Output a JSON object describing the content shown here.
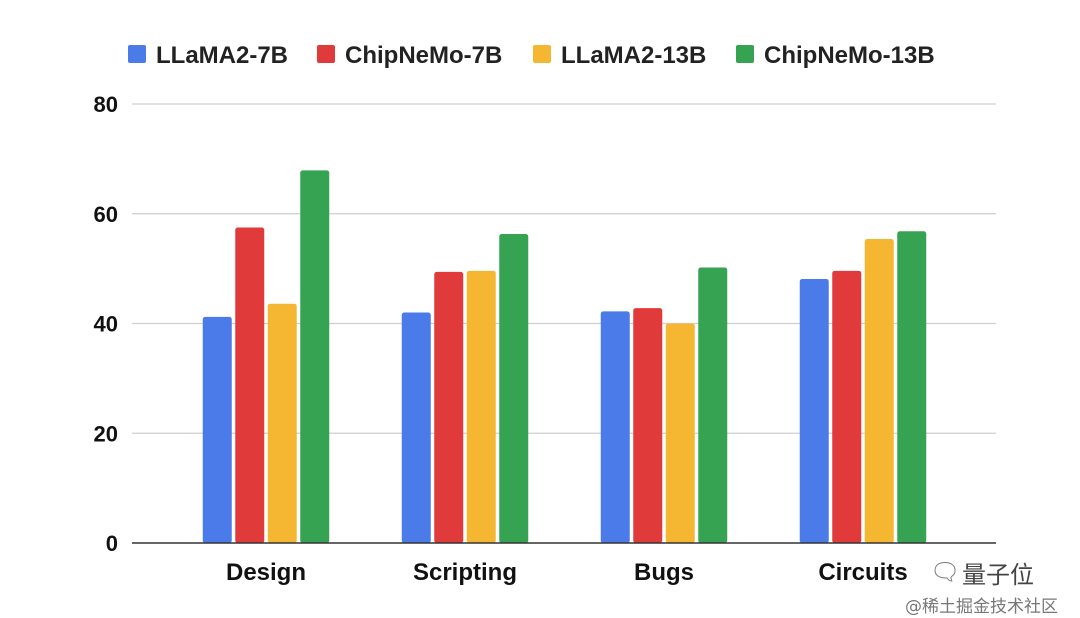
{
  "chart_data": {
    "type": "bar",
    "categories": [
      "Design",
      "Scripting",
      "Bugs",
      "Circuits"
    ],
    "series": [
      {
        "name": "LLaMA2-7B",
        "color": "#4a7be8",
        "values": [
          41.2,
          42.0,
          42.2,
          48.1
        ]
      },
      {
        "name": "ChipNeMo-7B",
        "color": "#e03a3a",
        "values": [
          57.5,
          49.4,
          42.8,
          49.6
        ]
      },
      {
        "name": "LLaMA2-13B",
        "color": "#f5b731",
        "values": [
          43.6,
          49.6,
          40.0,
          55.4
        ]
      },
      {
        "name": "ChipNeMo-13B",
        "color": "#36a352",
        "values": [
          67.9,
          56.3,
          50.2,
          56.8
        ]
      }
    ],
    "ylim": [
      0,
      80
    ],
    "yticks": [
      0,
      20,
      40,
      60,
      80
    ],
    "grid": true,
    "legend": "top"
  },
  "watermark": {
    "main": "量子位",
    "sub": "@稀土掘金技术社区",
    "icon": "wechat-icon"
  }
}
